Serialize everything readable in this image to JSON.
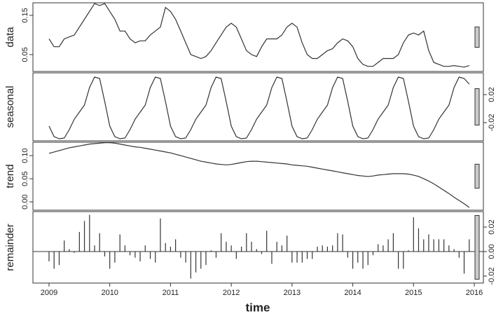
{
  "chart_data": {
    "type": "stl",
    "xlabel": "time",
    "xlim": [
      2008.735,
      2016.15
    ],
    "xticks": [
      2009,
      2010,
      2011,
      2012,
      2013,
      2014,
      2015,
      2016
    ],
    "x": [
      2009.0,
      2009.083,
      2009.167,
      2009.25,
      2009.333,
      2009.417,
      2009.5,
      2009.583,
      2009.667,
      2009.75,
      2009.833,
      2009.917,
      2010.0,
      2010.083,
      2010.167,
      2010.25,
      2010.333,
      2010.417,
      2010.5,
      2010.583,
      2010.667,
      2010.75,
      2010.833,
      2010.917,
      2011.0,
      2011.083,
      2011.167,
      2011.25,
      2011.333,
      2011.417,
      2011.5,
      2011.583,
      2011.667,
      2011.75,
      2011.833,
      2011.917,
      2012.0,
      2012.083,
      2012.167,
      2012.25,
      2012.333,
      2012.417,
      2012.5,
      2012.583,
      2012.667,
      2012.75,
      2012.833,
      2012.917,
      2013.0,
      2013.083,
      2013.167,
      2013.25,
      2013.333,
      2013.417,
      2013.5,
      2013.583,
      2013.667,
      2013.75,
      2013.833,
      2013.917,
      2014.0,
      2014.083,
      2014.167,
      2014.25,
      2014.333,
      2014.417,
      2014.5,
      2014.583,
      2014.667,
      2014.75,
      2014.833,
      2014.917,
      2015.0,
      2015.083,
      2015.167,
      2015.25,
      2015.333,
      2015.417,
      2015.5,
      2015.583,
      2015.667,
      2015.75,
      2015.833,
      2015.917
    ],
    "panels": [
      {
        "type": "line",
        "ylabel": "data",
        "side": "left",
        "ylim": [
          0.007,
          0.182
        ],
        "yticks": [
          0.05,
          0.15
        ],
        "values": [
          0.09,
          0.07,
          0.07,
          0.09,
          0.095,
          0.1,
          0.12,
          0.14,
          0.16,
          0.18,
          0.175,
          0.18,
          0.16,
          0.14,
          0.11,
          0.11,
          0.09,
          0.08,
          0.085,
          0.085,
          0.1,
          0.11,
          0.12,
          0.17,
          0.16,
          0.14,
          0.11,
          0.08,
          0.05,
          0.045,
          0.04,
          0.045,
          0.06,
          0.08,
          0.1,
          0.12,
          0.13,
          0.12,
          0.09,
          0.06,
          0.05,
          0.045,
          0.07,
          0.09,
          0.09,
          0.09,
          0.1,
          0.12,
          0.13,
          0.12,
          0.08,
          0.05,
          0.04,
          0.04,
          0.05,
          0.06,
          0.065,
          0.08,
          0.09,
          0.085,
          0.07,
          0.04,
          0.025,
          0.02,
          0.02,
          0.03,
          0.04,
          0.04,
          0.04,
          0.05,
          0.08,
          0.1,
          0.105,
          0.1,
          0.11,
          0.06,
          0.03,
          0.025,
          0.02,
          0.02,
          0.022,
          0.02,
          0.018,
          0.022
        ]
      },
      {
        "type": "line",
        "ylabel": "seasonal",
        "side": "right",
        "ylim": [
          -0.046,
          0.051
        ],
        "yticks": [
          0.02,
          -0.02
        ],
        "values": [
          -0.025,
          -0.04,
          -0.043,
          -0.042,
          -0.03,
          -0.015,
          -0.005,
          0.005,
          0.03,
          0.045,
          0.043,
          0.01,
          -0.025,
          -0.04,
          -0.043,
          -0.042,
          -0.03,
          -0.015,
          -0.005,
          0.005,
          0.03,
          0.045,
          0.043,
          0.01,
          -0.025,
          -0.04,
          -0.043,
          -0.042,
          -0.03,
          -0.015,
          -0.005,
          0.005,
          0.03,
          0.045,
          0.043,
          0.01,
          -0.025,
          -0.04,
          -0.043,
          -0.042,
          -0.03,
          -0.015,
          -0.005,
          0.005,
          0.03,
          0.045,
          0.043,
          0.01,
          -0.025,
          -0.04,
          -0.043,
          -0.042,
          -0.03,
          -0.015,
          -0.005,
          0.005,
          0.03,
          0.045,
          0.043,
          0.01,
          -0.025,
          -0.04,
          -0.043,
          -0.042,
          -0.03,
          -0.015,
          -0.005,
          0.005,
          0.03,
          0.045,
          0.043,
          0.01,
          -0.025,
          -0.04,
          -0.043,
          -0.042,
          -0.03,
          -0.015,
          -0.005,
          0.005,
          0.03,
          0.045,
          0.043,
          0.035
        ]
      },
      {
        "type": "line",
        "ylabel": "trend",
        "side": "left",
        "ylim": [
          -0.018,
          0.129
        ],
        "yticks": [
          {
            "value": 0.1,
            "label": "0.10"
          },
          0.05,
          {
            "value": 0,
            "label": "0.00"
          }
        ],
        "values": [
          0.105,
          0.108,
          0.111,
          0.114,
          0.117,
          0.119,
          0.121,
          0.123,
          0.125,
          0.126,
          0.127,
          0.128,
          0.128,
          0.127,
          0.125,
          0.123,
          0.121,
          0.119,
          0.118,
          0.116,
          0.114,
          0.112,
          0.11,
          0.108,
          0.106,
          0.103,
          0.1,
          0.097,
          0.094,
          0.091,
          0.088,
          0.086,
          0.084,
          0.082,
          0.081,
          0.08,
          0.081,
          0.083,
          0.085,
          0.087,
          0.088,
          0.088,
          0.087,
          0.086,
          0.085,
          0.084,
          0.083,
          0.082,
          0.08,
          0.079,
          0.078,
          0.077,
          0.075,
          0.073,
          0.071,
          0.069,
          0.067,
          0.065,
          0.063,
          0.061,
          0.059,
          0.057,
          0.056,
          0.055,
          0.056,
          0.058,
          0.059,
          0.06,
          0.061,
          0.061,
          0.061,
          0.06,
          0.058,
          0.055,
          0.05,
          0.045,
          0.039,
          0.032,
          0.025,
          0.018,
          0.01,
          0.003,
          -0.004,
          -0.012
        ]
      },
      {
        "type": "spike",
        "ylabel": "remainder",
        "side": "right",
        "ylim": [
          -0.0257,
          0.0326
        ],
        "yticks": [
          0.02,
          {
            "value": 0,
            "label": "0.00"
          },
          -0.02
        ],
        "values": [
          -0.008,
          -0.014,
          -0.011,
          0.009,
          0.002,
          -0.001,
          0.016,
          0.025,
          0.03,
          0.005,
          0.015,
          -0.004,
          -0.014,
          -0.009,
          0.014,
          0.005,
          -0.003,
          -0.005,
          -0.008,
          0.005,
          -0.006,
          -0.009,
          0.027,
          0.007,
          0.004,
          0.01,
          -0.005,
          -0.009,
          -0.022,
          -0.017,
          -0.014,
          -0.011,
          0.001,
          -0.005,
          0.015,
          0.008,
          0.005,
          -0.006,
          0.004,
          0.015,
          0.008,
          0.002,
          -0.002,
          0.017,
          -0.01,
          0.008,
          0.005,
          0.013,
          -0.009,
          -0.009,
          -0.009,
          -0.006,
          -0.006,
          0.004,
          0.005,
          0.004,
          0.005,
          0.015,
          0.014,
          -0.005,
          -0.014,
          -0.009,
          -0.014,
          -0.011,
          -0.003,
          0.006,
          0.005,
          0.01,
          0.015,
          -0.014,
          -0.014,
          0.001,
          0.028,
          0.019,
          0.01,
          0.014,
          0.01,
          0.01,
          0.01,
          0.005,
          0.002,
          -0.005,
          -0.018,
          0.01
        ]
      }
    ]
  }
}
